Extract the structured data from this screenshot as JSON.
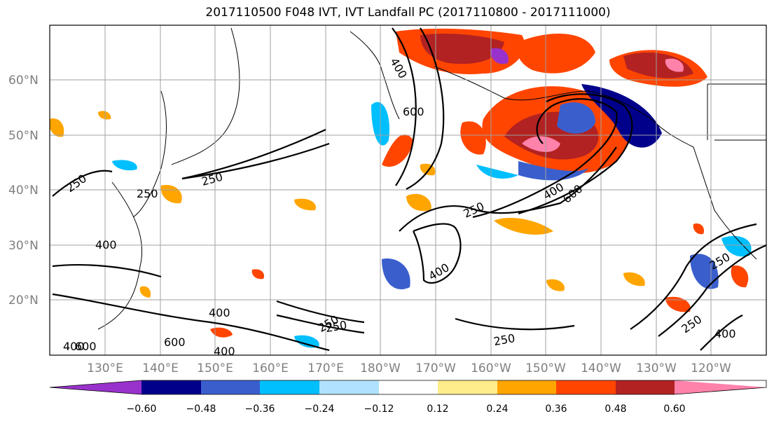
{
  "title": "2017110500 F048 IVT, IVT Landfall PC (2017110800 - 2017111000)",
  "lat_labels": [
    "60°N",
    "50°N",
    "40°N",
    "30°N",
    "20°N"
  ],
  "lon_labels": [
    "130°E",
    "140°E",
    "150°E",
    "160°E",
    "170°E",
    "180°W",
    "170°W",
    "160°W",
    "150°W",
    "140°W",
    "130°W",
    "120°W"
  ],
  "colorbar": {
    "tick_labels": [
      "−0.60",
      "−0.48",
      "−0.36",
      "−0.24",
      "−0.12",
      "0.12",
      "0.24",
      "0.36",
      "0.48",
      "0.60"
    ],
    "colors": [
      "#9932cc",
      "#00008b",
      "#3a5fcd",
      "#00bfff",
      "#b0e2ff",
      "#ffffff",
      "#ffec8b",
      "#ffa500",
      "#ff4500",
      "#b22222",
      "#ff82ab"
    ]
  },
  "contour_labels": [
    "400",
    "250",
    "250",
    "250",
    "250",
    "400",
    "600",
    "250",
    "400",
    "400",
    "250",
    "250",
    "600",
    "400",
    "250",
    "250",
    "400",
    "400",
    "600",
    "400",
    "600"
  ]
}
